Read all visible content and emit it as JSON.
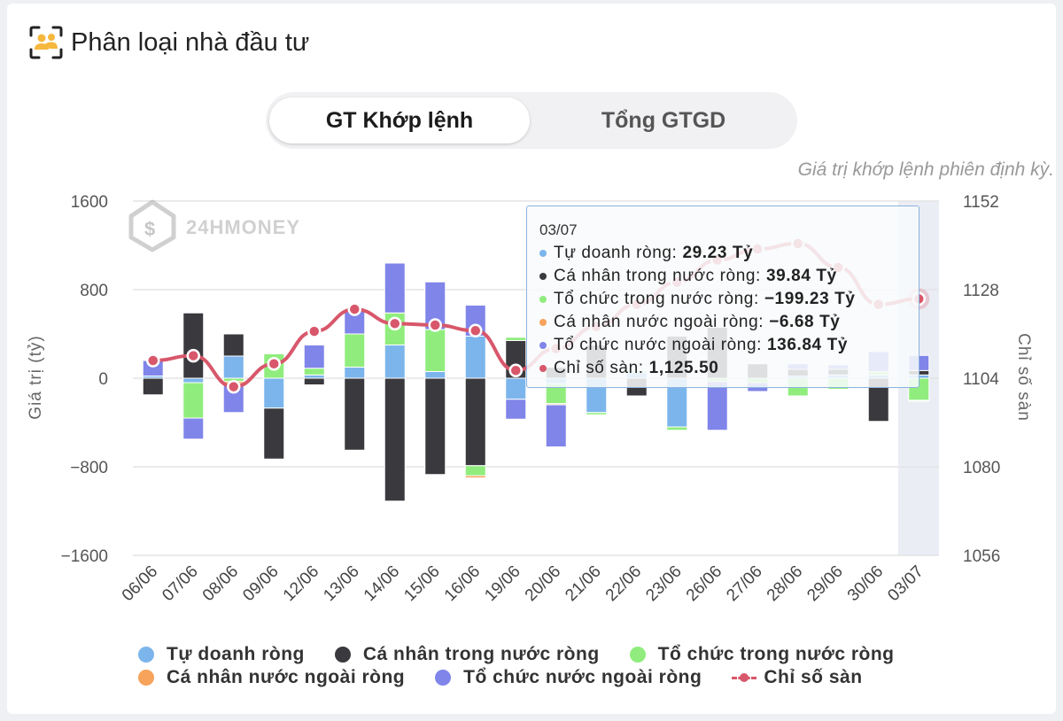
{
  "header": {
    "title": "Phân loại nhà đầu tư",
    "icon": "investor-group-icon"
  },
  "tabs": [
    {
      "label": "GT Khớp lệnh",
      "active": true
    },
    {
      "label": "Tổng GTGD",
      "active": false
    }
  ],
  "note": "Giá trị khớp lệnh phiên định kỳ.",
  "watermark": "24HMONEY",
  "chart_data": {
    "type": "bar",
    "stacked": true,
    "categories": [
      "06/06",
      "07/06",
      "08/06",
      "09/06",
      "12/06",
      "13/06",
      "14/06",
      "15/06",
      "16/06",
      "19/06",
      "20/06",
      "21/06",
      "22/06",
      "23/06",
      "26/06",
      "27/06",
      "28/06",
      "29/06",
      "30/06",
      "03/07"
    ],
    "ylabel": "Giá trị (tỷ)",
    "y2label": "Chỉ số sàn",
    "ylim": [
      -1600,
      1600
    ],
    "y2lim": [
      1056,
      1152
    ],
    "yticks": [
      "1600",
      "800",
      "0",
      "−800",
      "−1600"
    ],
    "y2ticks": [
      "1152",
      "1128",
      "1104",
      "1080",
      "1056"
    ],
    "grid": true,
    "legend_position": "bottom",
    "series": [
      {
        "name": "Tự doanh ròng",
        "color": "#7cb5ec",
        "values": [
          20,
          -40,
          200,
          -270,
          30,
          100,
          300,
          60,
          380,
          -190,
          -50,
          -310,
          50,
          -440,
          0,
          0,
          20,
          30,
          30,
          29.23
        ]
      },
      {
        "name": "Cá nhân trong nước ròng",
        "color": "#3a3a3e",
        "values": [
          -150,
          590,
          200,
          -460,
          -60,
          -650,
          -1110,
          -870,
          -790,
          340,
          100,
          300,
          -160,
          380,
          460,
          130,
          60,
          50,
          -390,
          39.84
        ]
      },
      {
        "name": "Tổ chức trong nước ròng",
        "color": "#90ed7d",
        "values": [
          0,
          -320,
          -30,
          220,
          60,
          300,
          290,
          380,
          -90,
          30,
          -180,
          -20,
          20,
          -30,
          -30,
          -40,
          -160,
          -100,
          30,
          -199.23
        ]
      },
      {
        "name": "Cá nhân nước ngoài ròng",
        "color": "#f7a35c",
        "values": [
          0,
          0,
          -20,
          0,
          0,
          0,
          0,
          0,
          -20,
          0,
          -10,
          0,
          0,
          0,
          0,
          0,
          0,
          0,
          0,
          -6.68
        ]
      },
      {
        "name": "Tổ chức nước ngoài ròng",
        "color": "#8085e9",
        "values": [
          140,
          -190,
          -260,
          0,
          210,
          220,
          450,
          430,
          280,
          -180,
          -380,
          0,
          0,
          0,
          -440,
          -80,
          50,
          40,
          180,
          136.84
        ]
      }
    ],
    "line": {
      "name": "Chỉ số sàn",
      "color": "#d8576b",
      "values": [
        1108.8,
        1110.1,
        1101.7,
        1107.9,
        1116.7,
        1122.7,
        1118.8,
        1118.4,
        1116.9,
        1106.1,
        1112.0,
        1118.0,
        1124.0,
        1130.0,
        1136.0,
        1139.0,
        1140.5,
        1134.0,
        1124.0,
        1125.5
      ]
    }
  },
  "tooltip": {
    "date": "03/07",
    "rows": [
      {
        "label": "Tự doanh ròng:",
        "value": "29.23 Tỷ",
        "color": "#7cb5ec"
      },
      {
        "label": "Cá nhân trong nước ròng:",
        "value": "39.84 Tỷ",
        "color": "#3a3a3e"
      },
      {
        "label": "Tổ chức trong nước ròng:",
        "value": "−199.23 Tỷ",
        "color": "#90ed7d"
      },
      {
        "label": "Cá nhân nước ngoài ròng:",
        "value": "−6.68 Tỷ",
        "color": "#f7a35c"
      },
      {
        "label": "Tổ chức nước ngoài ròng:",
        "value": "136.84 Tỷ",
        "color": "#8085e9"
      },
      {
        "label": "Chỉ số sàn:",
        "value": "1,125.50",
        "color": "#d8576b"
      }
    ]
  },
  "legend": [
    {
      "label": "Tự doanh ròng",
      "color": "#7cb5ec",
      "kind": "dot"
    },
    {
      "label": "Cá nhân trong nước ròng",
      "color": "#3a3a3e",
      "kind": "dot"
    },
    {
      "label": "Tổ chức trong nước ròng",
      "color": "#90ed7d",
      "kind": "dot"
    },
    {
      "label": "Cá nhân nước ngoài ròng",
      "color": "#f7a35c",
      "kind": "dot"
    },
    {
      "label": "Tổ chức nước ngoài ròng",
      "color": "#8085e9",
      "kind": "dot"
    },
    {
      "label": "Chỉ số sàn",
      "color": "#d8576b",
      "kind": "line"
    }
  ]
}
